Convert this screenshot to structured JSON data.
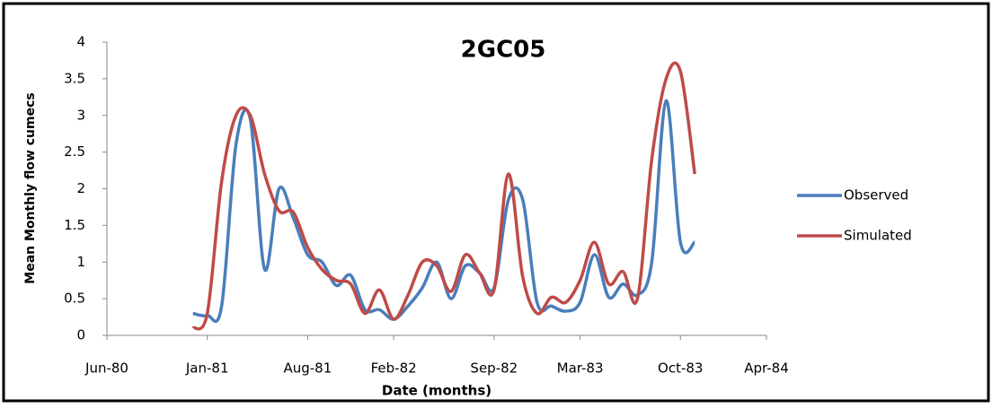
{
  "chart_data": {
    "type": "line",
    "title": "2GC05",
    "x_label": "Date (months)",
    "y_label": "Mean Monthly flow cumecs",
    "x": [
      "1980-12",
      "1981-01",
      "1981-02",
      "1981-03",
      "1981-04",
      "1981-05",
      "1981-06",
      "1981-07",
      "1981-08",
      "1981-09",
      "1981-10",
      "1981-11",
      "1981-12",
      "1982-01",
      "1982-02",
      "1982-03",
      "1982-04",
      "1982-05",
      "1982-06",
      "1982-07",
      "1982-08",
      "1982-09",
      "1982-10",
      "1982-11",
      "1982-12",
      "1983-01",
      "1983-02",
      "1983-03",
      "1983-04",
      "1983-05",
      "1983-06",
      "1983-07",
      "1983-08",
      "1983-09",
      "1983-10",
      "1983-11"
    ],
    "series": [
      {
        "name": "Observed",
        "color": "#4a7ebb",
        "values": [
          0.3,
          0.27,
          0.4,
          2.6,
          2.95,
          0.9,
          2.0,
          1.6,
          1.1,
          1.0,
          0.68,
          0.82,
          0.35,
          0.35,
          0.22,
          0.4,
          0.65,
          1.0,
          0.5,
          0.95,
          0.85,
          0.65,
          1.85,
          1.85,
          0.45,
          0.4,
          0.33,
          0.45,
          1.1,
          0.52,
          0.7,
          0.55,
          1.0,
          3.2,
          1.27,
          1.27
        ]
      },
      {
        "name": "Simulated",
        "color": "#be4b48",
        "values": [
          0.1,
          0.3,
          2.1,
          3.0,
          3.0,
          2.2,
          1.7,
          1.68,
          1.2,
          0.9,
          0.75,
          0.7,
          0.3,
          0.62,
          0.22,
          0.55,
          1.0,
          0.95,
          0.6,
          1.1,
          0.85,
          0.62,
          2.2,
          0.8,
          0.3,
          0.52,
          0.45,
          0.75,
          1.27,
          0.7,
          0.87,
          0.5,
          2.4,
          3.5,
          3.6,
          2.2
        ]
      }
    ],
    "xlim": [
      "1980-06",
      "1984-04"
    ],
    "xticks": [
      {
        "value": "1980-06",
        "label": "Jun-80"
      },
      {
        "value": "1981-01",
        "label": "Jan-81"
      },
      {
        "value": "1981-08",
        "label": "Aug-81"
      },
      {
        "value": "1982-02",
        "label": "Feb-82"
      },
      {
        "value": "1982-09",
        "label": "Sep-82"
      },
      {
        "value": "1983-03",
        "label": "Mar-83"
      },
      {
        "value": "1983-10",
        "label": "Oct-83"
      },
      {
        "value": "1984-04",
        "label": "Apr-84"
      }
    ],
    "ylim": [
      0,
      4
    ],
    "yticks": [
      0,
      0.5,
      1,
      1.5,
      2,
      2.5,
      3,
      3.5,
      4
    ],
    "grid": false,
    "legend": "right"
  }
}
